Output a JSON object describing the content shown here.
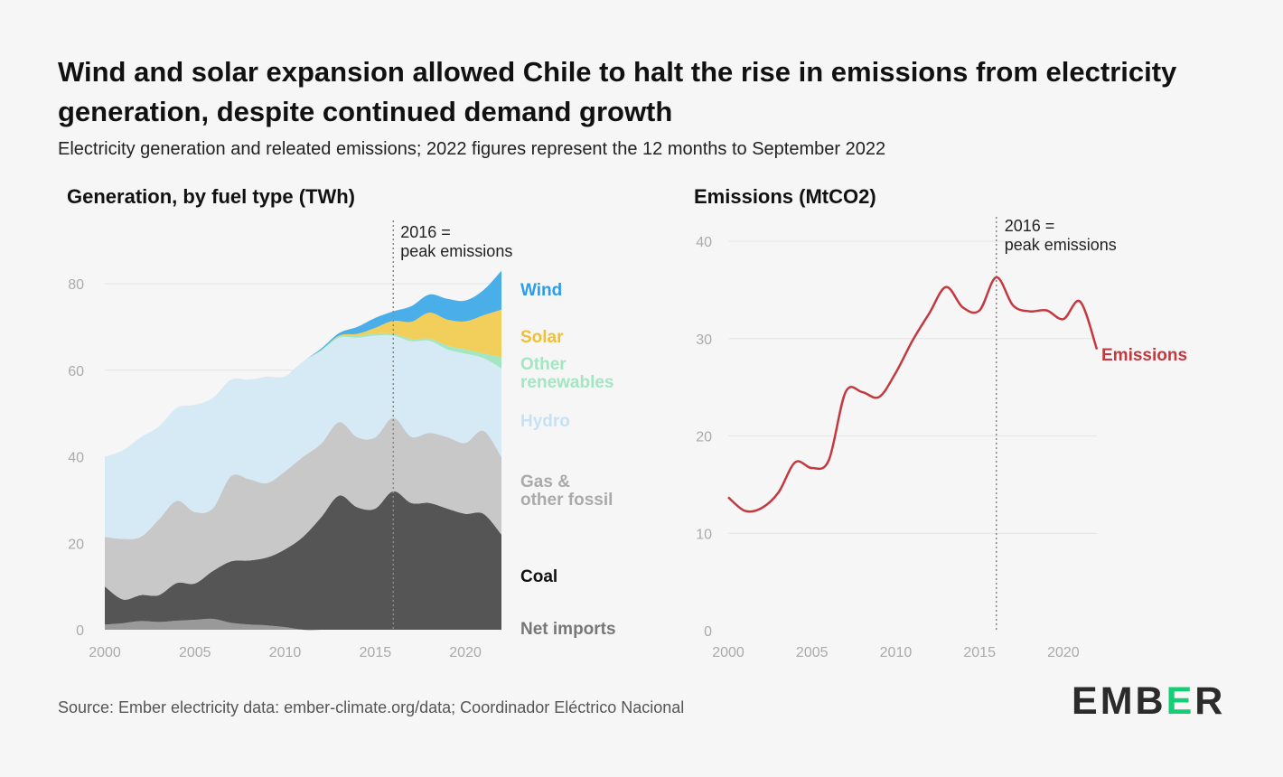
{
  "title": "Wind and solar expansion allowed Chile to halt the rise in emissions from electricity generation, despite continued demand growth",
  "subtitle": "Electricity generation and releated emissions; 2022 figures represent the 12 months to September 2022",
  "source": "Source: Ember electricity data: ember-climate.org/data; Coordinador Eléctrico Nacional",
  "logo": {
    "text": "EMBER",
    "accent_color": "#13ce74",
    "text_color": "#2b2b2b"
  },
  "chart_data": [
    {
      "type": "area",
      "stacked": true,
      "title": "Generation, by fuel type (TWh)",
      "x": [
        2000,
        2001,
        2002,
        2003,
        2004,
        2005,
        2006,
        2007,
        2008,
        2009,
        2010,
        2011,
        2012,
        2013,
        2014,
        2015,
        2016,
        2017,
        2018,
        2019,
        2020,
        2021,
        2022
      ],
      "xticks": [
        2000,
        2005,
        2010,
        2015,
        2020
      ],
      "yticks": [
        0,
        20,
        40,
        60,
        80
      ],
      "ylim": [
        0,
        85
      ],
      "xlim": [
        2000,
        2022
      ],
      "annotation": {
        "x": 2016,
        "line1": "2016 =",
        "line2": "peak emissions"
      },
      "series": [
        {
          "name": "Net imports",
          "label": "Net imports",
          "color": "#999999",
          "label_color": "#777777",
          "values": [
            1.2,
            1.5,
            2,
            1.8,
            2.1,
            2.3,
            2.5,
            1.6,
            1.2,
            1,
            0.6,
            0,
            0,
            0,
            0,
            0,
            0,
            0,
            0,
            0,
            0,
            0,
            0
          ]
        },
        {
          "name": "Coal",
          "label": "Coal",
          "color": "#555555",
          "label_color": "#111111",
          "values": [
            8.8,
            5.5,
            6,
            6.2,
            8.7,
            8.4,
            11.1,
            14.2,
            14.8,
            15.7,
            18,
            21.5,
            26,
            31,
            28.3,
            28,
            32,
            29.3,
            29.3,
            28,
            26.8,
            26.8,
            22
          ]
        },
        {
          "name": "Gas & other fossil",
          "label": "Gas &\nother fossil",
          "color": "#c8c8c8",
          "label_color": "#aaaaaa",
          "values": [
            11.5,
            14,
            13.5,
            17.5,
            19,
            16.5,
            14.5,
            19.7,
            18.8,
            17.2,
            18,
            18.5,
            17,
            17,
            16.2,
            16.5,
            17,
            15.3,
            16.2,
            16.5,
            16.4,
            19.2,
            17.9
          ]
        },
        {
          "name": "Hydro",
          "label": "Hydro",
          "color": "#d6eaf5",
          "label_color": "#c5e2f5",
          "values": [
            18.5,
            20.5,
            23,
            21.5,
            21.5,
            24.8,
            25.5,
            22.3,
            23,
            24.6,
            22,
            22,
            21.5,
            19.5,
            23,
            23.5,
            19,
            22.1,
            21.3,
            20.3,
            20.6,
            16.8,
            20.5
          ]
        },
        {
          "name": "Other renewables",
          "label": "Other\nrenewables",
          "color": "#a3e6c4",
          "label_color": "#a3e6c4",
          "values": [
            0,
            0,
            0,
            0,
            0,
            0,
            0,
            0,
            0,
            0,
            0,
            0,
            0.2,
            0.3,
            0.4,
            0.5,
            0.4,
            0.5,
            0.5,
            0.9,
            1,
            1.1,
            2.6
          ]
        },
        {
          "name": "Solar",
          "label": "Solar",
          "color": "#f2cf5b",
          "label_color": "#f0c030",
          "values": [
            0,
            0,
            0,
            0,
            0,
            0,
            0,
            0,
            0,
            0,
            0,
            0,
            0,
            0.2,
            0.5,
            1.3,
            3,
            4,
            6,
            6,
            6.5,
            8.8,
            11
          ]
        },
        {
          "name": "Wind",
          "label": "Wind",
          "color": "#4aaee8",
          "label_color": "#2a9ee8",
          "values": [
            0,
            0,
            0,
            0,
            0,
            0,
            0,
            0,
            0,
            0,
            0,
            0,
            0.3,
            0.6,
            1.6,
            2.3,
            2.2,
            3.6,
            4.2,
            4.8,
            4.8,
            5.8,
            9
          ]
        }
      ]
    },
    {
      "type": "line",
      "title": "Emissions (MtCO2)",
      "x": [
        2000,
        2001,
        2002,
        2003,
        2004,
        2005,
        2006,
        2007,
        2008,
        2009,
        2010,
        2011,
        2012,
        2013,
        2014,
        2015,
        2016,
        2017,
        2018,
        2019,
        2020,
        2021,
        2022
      ],
      "xticks": [
        2000,
        2005,
        2010,
        2015,
        2020
      ],
      "yticks": [
        0,
        10,
        20,
        30,
        40
      ],
      "ylim": [
        0,
        42
      ],
      "xlim": [
        2000,
        2022
      ],
      "annotation": {
        "x": 2016,
        "line1": "2016 =",
        "line2": "peak emissions"
      },
      "series": [
        {
          "name": "Emissions",
          "label": "Emissions",
          "color": "#c4393f",
          "values": [
            13.7,
            12.3,
            12.6,
            14.2,
            17.3,
            16.7,
            17.5,
            24.5,
            24.5,
            24,
            26.5,
            29.8,
            32.6,
            35.3,
            33.2,
            32.9,
            36.3,
            33.4,
            32.8,
            32.9,
            32,
            33.8,
            28.9
          ]
        }
      ]
    }
  ]
}
